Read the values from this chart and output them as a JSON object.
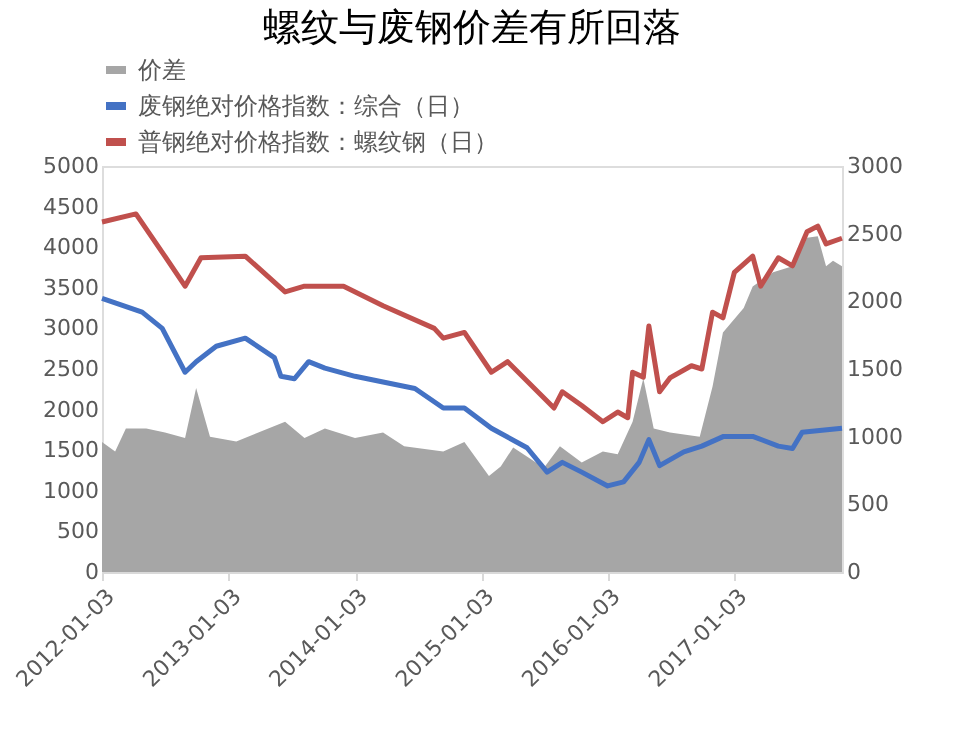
{
  "chart_data": {
    "type": "line",
    "title": "螺纹与废钢价差有所回落",
    "xlim": [
      "2012-01-03",
      "2017-11-10"
    ],
    "xticks": [
      "2012-01-03",
      "2013-01-03",
      "2014-01-03",
      "2015-01-03",
      "2016-01-03",
      "2017-01-03"
    ],
    "ylim": [
      0,
      5000
    ],
    "yticks": [
      0,
      500,
      1000,
      1500,
      2000,
      2500,
      3000,
      3500,
      4000,
      4500,
      5000
    ],
    "y2lim": [
      0,
      3000
    ],
    "y2ticks": [
      0,
      500,
      1000,
      1500,
      2000,
      2500,
      3000
    ],
    "grid": false,
    "legend": "top",
    "series": [
      {
        "name": "价差",
        "type": "area",
        "axis": "y2",
        "color": "#a6a6a6",
        "x": [
          "2012-01-03",
          "2012-02-10",
          "2012-03-12",
          "2012-05-10",
          "2012-07-03",
          "2012-08-30",
          "2012-10-01",
          "2012-11-10",
          "2013-01-25",
          "2013-06-15",
          "2013-08-10",
          "2013-10-08",
          "2014-01-03",
          "2014-03-25",
          "2014-05-25",
          "2014-09-15",
          "2014-11-15",
          "2015-01-25",
          "2015-02-28",
          "2015-04-05",
          "2015-07-03",
          "2015-08-18",
          "2015-10-20",
          "2015-12-20",
          "2016-02-01",
          "2016-03-15",
          "2016-04-15",
          "2016-05-15",
          "2016-07-01",
          "2016-09-25",
          "2016-11-01",
          "2016-12-01",
          "2017-01-30",
          "2017-02-25",
          "2017-04-25",
          "2017-06-20",
          "2017-08-01",
          "2017-09-01",
          "2017-09-25",
          "2017-10-15",
          "2017-11-10"
        ],
        "values": [
          960,
          890,
          1060,
          1060,
          1030,
          990,
          1360,
          1000,
          965,
          1110,
          990,
          1060,
          990,
          1030,
          930,
          890,
          960,
          710,
          780,
          920,
          770,
          930,
          810,
          890,
          870,
          1110,
          1430,
          1060,
          1030,
          1000,
          1370,
          1770,
          1950,
          2110,
          2215,
          2260,
          2470,
          2480,
          2260,
          2300,
          2260
        ]
      },
      {
        "name": "废钢绝对价格指数：综合（日）",
        "color": "#4472c4",
        "x": [
          "2012-01-03",
          "2012-04-28",
          "2012-06-25",
          "2012-08-30",
          "2012-10-01",
          "2012-11-28",
          "2013-02-20",
          "2013-05-15",
          "2013-06-03",
          "2013-07-12",
          "2013-08-22",
          "2013-10-08",
          "2014-01-03",
          "2014-03-25",
          "2014-06-25",
          "2014-09-15",
          "2014-11-15",
          "2015-02-01",
          "2015-05-15",
          "2015-07-12",
          "2015-08-25",
          "2015-10-20",
          "2016-01-03",
          "2016-02-18",
          "2016-04-03",
          "2016-05-01",
          "2016-06-01",
          "2016-08-10",
          "2016-10-01",
          "2016-12-03",
          "2017-02-25",
          "2017-05-10",
          "2017-06-20",
          "2017-07-18",
          "2017-11-10"
        ],
        "values": [
          3370,
          3200,
          3000,
          2460,
          2590,
          2780,
          2880,
          2640,
          2410,
          2380,
          2590,
          2510,
          2410,
          2340,
          2260,
          2020,
          2020,
          1770,
          1530,
          1230,
          1350,
          1230,
          1060,
          1110,
          1350,
          1630,
          1310,
          1480,
          1550,
          1670,
          1670,
          1550,
          1520,
          1720,
          1770
        ]
      },
      {
        "name": "普钢绝对价格指数：螺纹钢（日）",
        "color": "#c0504d",
        "x": [
          "2012-01-03",
          "2012-04-10",
          "2012-07-01",
          "2012-08-30",
          "2012-10-15",
          "2013-02-20",
          "2013-06-15",
          "2013-08-10",
          "2013-12-01",
          "2014-03-25",
          "2014-08-20",
          "2014-09-15",
          "2014-11-15",
          "2015-02-01",
          "2015-03-20",
          "2015-08-01",
          "2015-08-25",
          "2015-10-20",
          "2015-12-20",
          "2016-02-01",
          "2016-03-01",
          "2016-03-15",
          "2016-04-15",
          "2016-05-01",
          "2016-06-01",
          "2016-07-01",
          "2016-09-01",
          "2016-10-01",
          "2016-11-01",
          "2016-12-01",
          "2017-01-03",
          "2017-02-25",
          "2017-03-20",
          "2017-05-10",
          "2017-06-20",
          "2017-08-01",
          "2017-09-01",
          "2017-09-25",
          "2017-11-10"
        ],
        "values": [
          4310,
          4410,
          3900,
          3520,
          3870,
          3890,
          3450,
          3520,
          3520,
          3280,
          3000,
          2880,
          2950,
          2460,
          2590,
          2020,
          2220,
          2050,
          1850,
          1970,
          1900,
          2460,
          2400,
          3030,
          2220,
          2390,
          2540,
          2500,
          3200,
          3130,
          3690,
          3890,
          3520,
          3870,
          3770,
          4190,
          4260,
          4040,
          4110
        ]
      }
    ]
  }
}
